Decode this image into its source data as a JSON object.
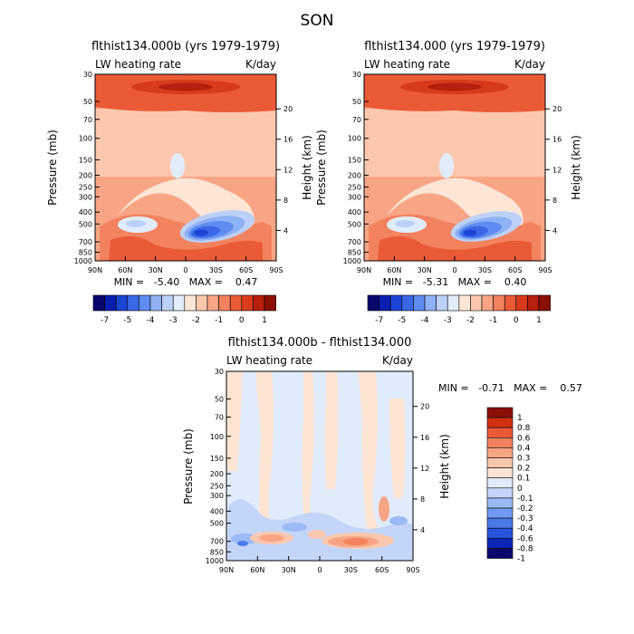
{
  "page_title": "SON",
  "colors": {
    "top_palette": [
      "#08076e",
      "#0a1fb0",
      "#1d45d4",
      "#3a67e6",
      "#5f8cf0",
      "#8fb1f5",
      "#bdd1f8",
      "#e1edfb",
      "#fde6d6",
      "#fcc8ad",
      "#f8a585",
      "#f3825e",
      "#eb5a37",
      "#d83a1c",
      "#b71f0e",
      "#8a0f05"
    ],
    "diff_palette": [
      "#08076e",
      "#0e26b5",
      "#2654dc",
      "#4b7ae6",
      "#7099f0",
      "#9bbaf5",
      "#c3d6f9",
      "#e0ebfb",
      "#fde4d3",
      "#fcc8ad",
      "#f8a585",
      "#f3825e",
      "#eb5a37",
      "#d0300f",
      "#8a0f05"
    ]
  },
  "chart_data": [
    {
      "type": "contour",
      "title": "flthist134.000b (yrs 1979-1979)",
      "field_label": "LW heating rate",
      "units": "K/day",
      "ylabel": "Pressure (mb)",
      "y2label": "Height (km)",
      "x_ticks": [
        "90N",
        "60N",
        "30N",
        "0",
        "30S",
        "60S",
        "90S"
      ],
      "y_ticks": [
        "30",
        "50",
        "70",
        "100",
        "150",
        "200",
        "250",
        "300",
        "400",
        "500",
        "700",
        "850",
        "1000"
      ],
      "y2_ticks": [
        "20",
        "16",
        "12",
        "8",
        "4"
      ],
      "stats": "MIN =   -5.40   MAX =    0.47",
      "colorbar_labels": [
        "-7",
        "-5",
        "-4",
        "-3",
        "-2",
        "-1",
        "0",
        "1"
      ]
    },
    {
      "type": "contour",
      "title": "flthist134.000 (yrs 1979-1979)",
      "field_label": "LW heating rate",
      "units": "K/day",
      "ylabel": "Pressure (mb)",
      "y2label": "Height (km)",
      "x_ticks": [
        "90N",
        "60N",
        "30N",
        "0",
        "30S",
        "60S",
        "90S"
      ],
      "y_ticks": [
        "30",
        "50",
        "70",
        "100",
        "150",
        "200",
        "250",
        "300",
        "400",
        "500",
        "700",
        "850",
        "1000"
      ],
      "y2_ticks": [
        "20",
        "16",
        "12",
        "8",
        "4"
      ],
      "stats": "MIN =   -5.31   MAX =    0.40",
      "colorbar_labels": [
        "-7",
        "-5",
        "-4",
        "-3",
        "-2",
        "-1",
        "0",
        "1"
      ]
    },
    {
      "type": "contour",
      "title": "flthist134.000b - flthist134.000",
      "field_label": "LW heating rate",
      "units": "K/day",
      "ylabel": "Pressure (mb)",
      "y2label": "Height (km)",
      "x_ticks": [
        "90N",
        "60N",
        "30N",
        "0",
        "30S",
        "60S",
        "90S"
      ],
      "y_ticks": [
        "30",
        "50",
        "70",
        "100",
        "150",
        "200",
        "250",
        "300",
        "400",
        "500",
        "700",
        "850",
        "1000"
      ],
      "y2_ticks": [
        "20",
        "16",
        "12",
        "8",
        "4"
      ],
      "stats": "MIN =   -0.71   MAX =    0.57",
      "colorbar_labels": [
        "1",
        "0.8",
        "0.6",
        "0.4",
        "0.3",
        "0.2",
        "0.1",
        "0",
        "-0.1",
        "-0.2",
        "-0.3",
        "-0.4",
        "-0.6",
        "-0.8",
        "-1"
      ]
    }
  ]
}
